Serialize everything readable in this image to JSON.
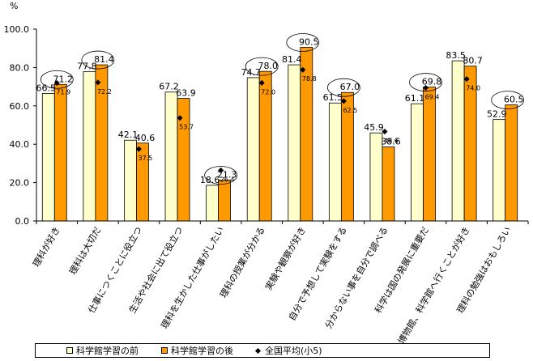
{
  "chart_data": {
    "type": "bar",
    "y_unit_label": "%",
    "ylim": [
      0,
      100
    ],
    "yticks": [
      "0.0",
      "20.0",
      "40.0",
      "60.0",
      "80.0",
      "100.0"
    ],
    "grid": false,
    "legend_position": "bottom",
    "categories": [
      "理科が好き",
      "理科は大切だ",
      "仕事につくことに役立つ",
      "生活や社会に出て役立つ",
      "理科を生かした仕事がしたい",
      "理科の授業が分かる",
      "実験や観察が好き",
      "自分で予想して実験をする",
      "分からない事を自分で調べる",
      "科学は国の発展に重要だ",
      "博物館、科学館へ行くことが好き",
      "理科の勉強はおもしろい"
    ],
    "series": [
      {
        "name": "科学館学習の前",
        "color": "#FFFFCC",
        "values": [
          66.5,
          77.8,
          42.1,
          67.2,
          18.6,
          74.7,
          81.4,
          61.5,
          45.9,
          61.1,
          83.5,
          52.9
        ],
        "labels": [
          "66.5",
          "77.8",
          "42.1",
          "67.2",
          "18.6",
          "74.7",
          "81.4",
          "61.5",
          "45.9",
          "61.1",
          "83.5",
          "52.9"
        ]
      },
      {
        "name": "科学館学習の後",
        "color": "#FF9900",
        "values": [
          71.2,
          81.4,
          40.6,
          63.9,
          21.3,
          78.0,
          90.5,
          67.0,
          38.6,
          69.8,
          80.7,
          60.5
        ],
        "labels": [
          "71.2",
          "81.4",
          "40.6",
          "63.9",
          "21.3",
          "78.0",
          "90.5",
          "67.0",
          "38.6",
          "69.8",
          "80.7",
          "60.5"
        ]
      },
      {
        "name": "全国平均(小5)",
        "color": "#000000",
        "values": [
          71.9,
          72.2,
          37.5,
          53.7,
          26.4,
          72.0,
          78.8,
          62.5,
          46.6,
          69.4,
          74.0,
          null
        ],
        "labels": [
          "71.9",
          "72.2",
          "37.5",
          "53.7",
          "26.4",
          "72.0",
          "78.8",
          "62.5",
          "46.6",
          "69.4",
          "74.0",
          ""
        ]
      }
    ],
    "circled_categories": [
      0,
      1,
      4,
      5,
      6,
      7,
      9,
      11
    ]
  }
}
